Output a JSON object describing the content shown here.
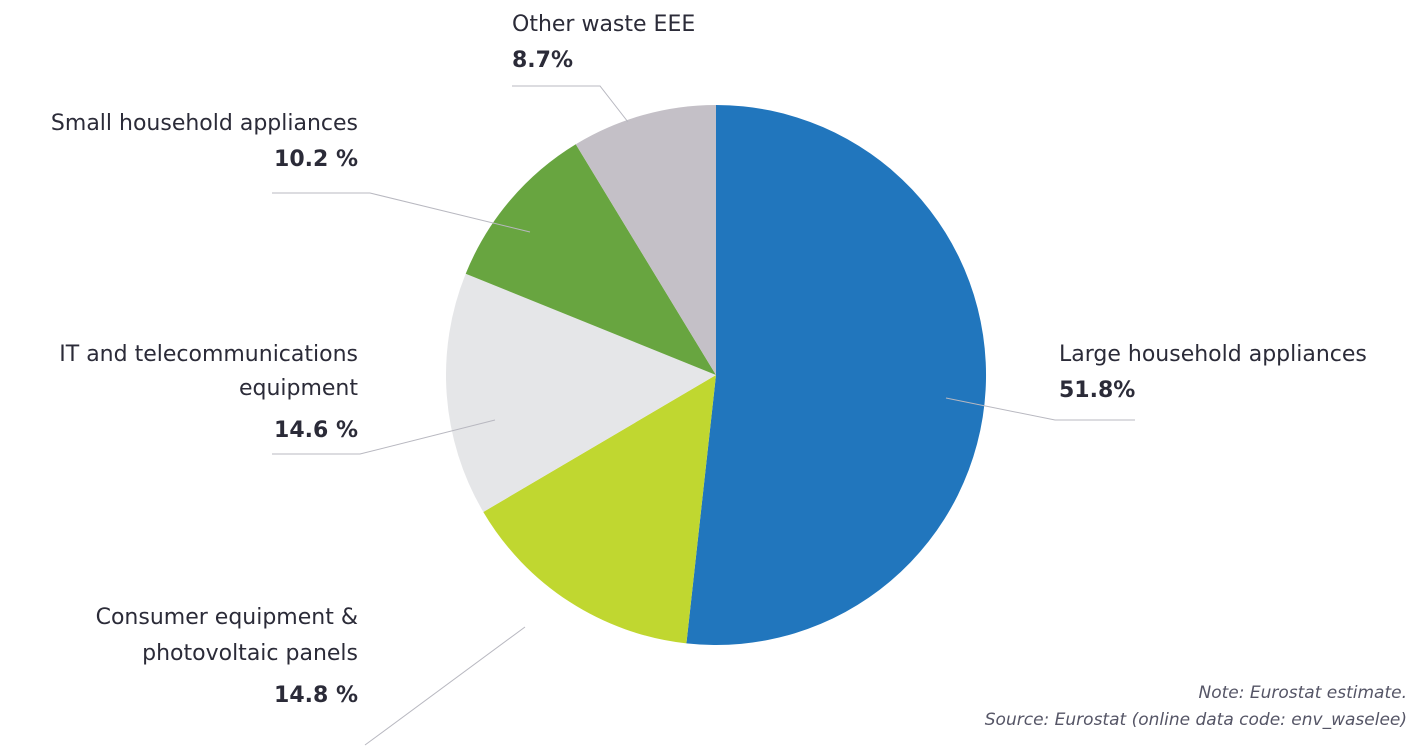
{
  "chart_data": {
    "type": "pie",
    "slices": [
      {
        "label": "Large household appliances",
        "value": 51.8,
        "display": "51.8%",
        "color": "#2176bd"
      },
      {
        "label": "Consumer equipment & photovoltaic panels",
        "label_lines": [
          "Consumer equipment &",
          "photovoltaic panels"
        ],
        "value": 14.8,
        "display": "14.8 %",
        "color": "#c0d730"
      },
      {
        "label": "IT and telecommunications equipment",
        "label_lines": [
          "IT and telecommunications",
          "equipment"
        ],
        "value": 14.6,
        "display": "14.6 %",
        "color": "#e5e6e8"
      },
      {
        "label": "Small household appliances",
        "value": 10.2,
        "display": "10.2 %",
        "color": "#68a540"
      },
      {
        "label": "Other waste EEE",
        "value": 8.7,
        "display": "8.7%",
        "color": "#c4c0c7"
      }
    ],
    "start_angle_deg": 0,
    "direction": "clockwise",
    "note": "Note: Eurostat estimate.",
    "source": "Source: Eurostat (online data code: env_waselee)"
  }
}
